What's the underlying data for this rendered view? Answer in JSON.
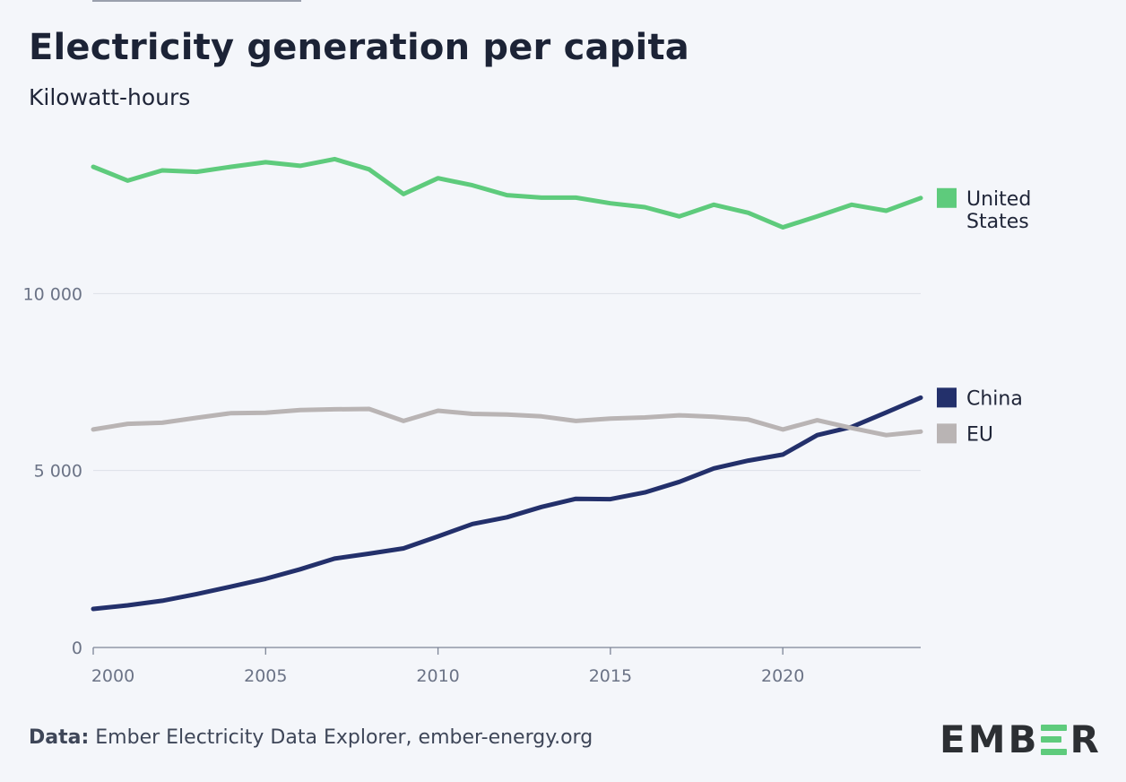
{
  "title": "Electricity generation per capita",
  "subtitle": "Kilowatt-hours",
  "source": {
    "label": "Data:",
    "text": "Ember Electricity Data Explorer, ember-energy.org"
  },
  "logo": {
    "text": "EMBER",
    "part1": "EMB",
    "part2": "R",
    "accent_color": "#5ecb7c",
    "dark_color": "#2c2f33"
  },
  "colors": {
    "background": "#f4f6fa",
    "gridline": "#dde0e7",
    "axis": "#7d8597",
    "tick_label": "#6b7386"
  },
  "chart_data": {
    "type": "line",
    "title": "Electricity generation per capita",
    "ylabel": "Kilowatt-hours",
    "xlabel": "",
    "xlim": [
      2000,
      2024
    ],
    "ylim": [
      0,
      15000
    ],
    "x_ticks": [
      2000,
      2005,
      2010,
      2015,
      2020
    ],
    "x_tick_labels": [
      "2000",
      "2005",
      "2010",
      "2015",
      "2020"
    ],
    "y_ticks": [
      0,
      5000,
      10000
    ],
    "y_tick_labels": [
      "0",
      "5 000",
      "10 000"
    ],
    "grid": true,
    "legend_position": "right-end-labels",
    "x": [
      2000,
      2001,
      2002,
      2003,
      2004,
      2005,
      2006,
      2007,
      2008,
      2009,
      2010,
      2011,
      2012,
      2013,
      2014,
      2015,
      2016,
      2017,
      2018,
      2019,
      2020,
      2021,
      2022,
      2023,
      2024
    ],
    "series": [
      {
        "name": "United States",
        "label_lines": [
          "United",
          "States"
        ],
        "color": "#5ecb7c",
        "values": [
          13580,
          13190,
          13480,
          13440,
          13580,
          13710,
          13610,
          13800,
          13510,
          12810,
          13260,
          13060,
          12780,
          12710,
          12710,
          12550,
          12440,
          12180,
          12510,
          12280,
          11870,
          12180,
          12510,
          12340,
          12700
        ]
      },
      {
        "name": "China",
        "label_lines": [
          "China"
        ],
        "color": "#23306b",
        "values": [
          1090,
          1190,
          1320,
          1510,
          1720,
          1940,
          2210,
          2510,
          2650,
          2800,
          3140,
          3490,
          3680,
          3970,
          4200,
          4190,
          4380,
          4680,
          5060,
          5280,
          5450,
          6000,
          6230,
          6640,
          7060
        ]
      },
      {
        "name": "EU",
        "label_lines": [
          "EU"
        ],
        "color": "#b9b4b4",
        "values": [
          6160,
          6320,
          6350,
          6490,
          6620,
          6630,
          6710,
          6730,
          6740,
          6400,
          6690,
          6600,
          6580,
          6530,
          6400,
          6470,
          6500,
          6560,
          6520,
          6440,
          6160,
          6420,
          6200,
          6000,
          6100
        ]
      }
    ]
  }
}
